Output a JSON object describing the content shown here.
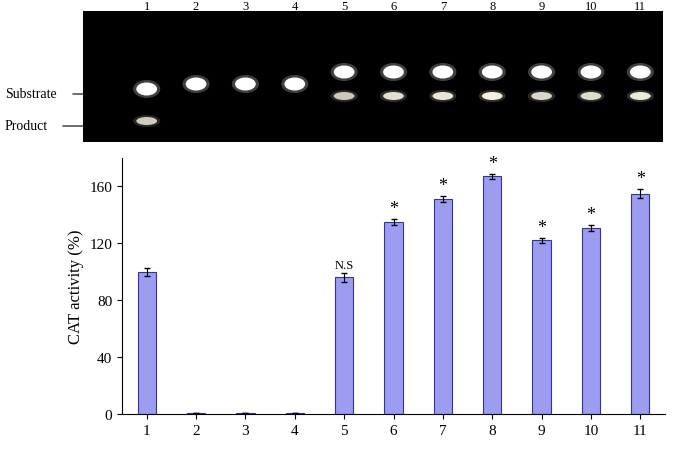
{
  "chart_data": {
    "type": "bar",
    "y_label": "CAT activity (%)",
    "categories": [
      "1",
      "2",
      "3",
      "4",
      "5",
      "6",
      "7",
      "8",
      "9",
      "10",
      "11"
    ],
    "values": [
      100,
      0.5,
      0.5,
      0.5,
      96,
      135,
      151,
      167,
      122,
      131,
      155
    ],
    "errors": [
      3,
      0,
      0,
      0,
      3,
      2,
      2,
      2,
      2,
      2,
      3
    ],
    "annotations": [
      null,
      null,
      null,
      null,
      "N.S",
      "*",
      "*",
      "*",
      "*",
      "*",
      "*"
    ],
    "color": "#9c9cf0",
    "ylim": [
      0,
      180
    ],
    "yticks": [
      0,
      40,
      80,
      120,
      160
    ],
    "grid": false
  },
  "gel": {
    "lanes": [
      "1",
      "2",
      "3",
      "4",
      "5",
      "6",
      "7",
      "8",
      "9",
      "10",
      "11"
    ],
    "substrate_label": "Substrate",
    "product_label": "Product"
  }
}
